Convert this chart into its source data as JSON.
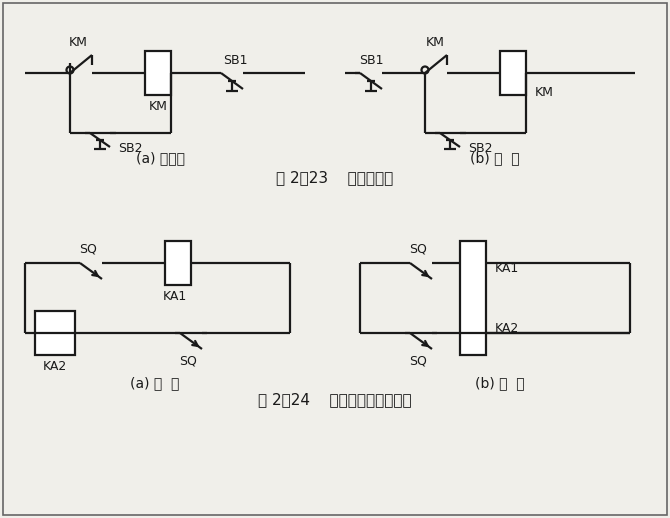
{
  "title1": "图 2－23    电器连接图",
  "title2": "图 2－24    正确连接电器的触点",
  "label_a1": "(a) 不合理",
  "label_b1": "(b) 合  理",
  "label_a2": "(a) 错  误",
  "label_b2": "(b) 正  确",
  "bg_color": "#f0efea",
  "line_color": "#1a1a1a",
  "lw": 1.6,
  "fig_width": 6.7,
  "fig_height": 5.18,
  "dpi": 100
}
